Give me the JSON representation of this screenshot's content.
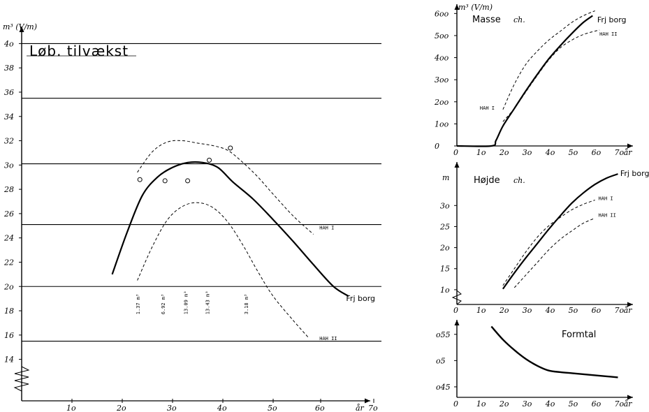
{
  "chart_data": [
    {
      "type": "line",
      "title": "Løb. tilvækst",
      "ylabel": "m³ (V/m)",
      "xlabel": "år",
      "xlim": [
        0,
        75
      ],
      "ylim": [
        13,
        41
      ],
      "xticks": [
        "1o",
        "2o",
        "3o",
        "4o",
        "5o",
        "6o",
        "7o"
      ],
      "xtick_values": [
        10,
        20,
        30,
        40,
        50,
        60,
        70
      ],
      "yticks": [
        "14",
        "16",
        "18",
        "2o",
        "22",
        "24",
        "26",
        "28",
        "3o",
        "32",
        "34",
        "36",
        "38",
        "4o"
      ],
      "ytick_values": [
        14,
        16,
        18,
        20,
        22,
        24,
        26,
        28,
        30,
        32,
        34,
        36,
        38,
        40
      ],
      "hlines": [
        15.5,
        20,
        25.1,
        30.1,
        35.5,
        40
      ],
      "series": [
        {
          "name": "Frj borg",
          "style": "solid",
          "label_at": [
            64.5,
            18.8
          ],
          "x": [
            18,
            21,
            24,
            27,
            30,
            33,
            36,
            39,
            42,
            46,
            50,
            54,
            58,
            62,
            65
          ],
          "y": [
            21,
            24.5,
            27.5,
            29,
            29.8,
            30.2,
            30.2,
            29.8,
            28.6,
            27.2,
            25.5,
            23.7,
            21.8,
            20.0,
            19.2
          ]
        },
        {
          "name": "HAH I",
          "style": "dashed",
          "label_at": [
            59.2,
            24.7
          ],
          "x": [
            23,
            26,
            29,
            32,
            35,
            38,
            41,
            44,
            47,
            50,
            54,
            58
          ],
          "y": [
            29.4,
            31.1,
            31.9,
            32,
            31.8,
            31.6,
            31.2,
            30.2,
            29,
            27.6,
            25.8,
            24.3
          ]
        },
        {
          "name": "HAH II",
          "style": "dashed",
          "label_at": [
            59.2,
            15.6
          ],
          "x": [
            23,
            26,
            29,
            32,
            35,
            38,
            41,
            44,
            47,
            50,
            54,
            57
          ],
          "y": [
            20.5,
            23.3,
            25.5,
            26.6,
            26.9,
            26.5,
            25.3,
            23.4,
            21.2,
            19.2,
            17.2,
            15.8
          ]
        }
      ],
      "points": [
        [
          23.5,
          28.8
        ],
        [
          28.5,
          28.7
        ],
        [
          33,
          28.7
        ],
        [
          37.3,
          30.4
        ],
        [
          41.5,
          31.4
        ]
      ],
      "annotations": [
        "1.37 m³",
        "6.92 m³",
        "13.09 m³",
        "13.43 m³",
        "3.18 m³"
      ],
      "annotation_x": [
        23.5,
        28.5,
        33,
        37.3,
        45
      ],
      "annotation_y": 17.7
    },
    {
      "type": "line",
      "title": "Masse",
      "title_suffix": "ch.",
      "ylabel": "m³ (V/m)",
      "xlim": [
        0,
        75
      ],
      "ylim": [
        0,
        620
      ],
      "xticks": [
        "0",
        "1o",
        "2o",
        "3o",
        "4o",
        "5o",
        "6o",
        "7o",
        "år"
      ],
      "xtick_values": [
        0,
        10,
        20,
        30,
        40,
        50,
        60,
        70,
        74
      ],
      "yticks": [
        "0",
        "1oo",
        "2oo",
        "3oo",
        "4oo",
        "5oo",
        "6oo"
      ],
      "ytick_values": [
        0,
        100,
        200,
        300,
        400,
        500,
        600
      ],
      "series": [
        {
          "name": "Frj borg",
          "style": "solid",
          "label_at": [
            61,
            560
          ],
          "x": [
            0,
            15,
            17,
            20,
            25,
            30,
            35,
            40,
            45,
            50,
            55,
            59
          ],
          "y": [
            0,
            0,
            25,
            90,
            170,
            250,
            325,
            395,
            455,
            510,
            560,
            590
          ]
        },
        {
          "name": "HAH II",
          "style": "dashed",
          "label_at": [
            62,
            500
          ],
          "x": [
            20,
            25,
            30,
            35,
            40,
            45,
            50,
            55,
            60,
            62
          ],
          "y": [
            110,
            170,
            245,
            320,
            390,
            445,
            480,
            505,
            520,
            525
          ]
        },
        {
          "name": "HAH I",
          "style": "dashed",
          "label_at": [
            10,
            165
          ],
          "x": [
            20,
            25,
            30,
            35,
            40,
            45,
            50,
            55,
            60
          ],
          "y": [
            165,
            280,
            370,
            430,
            480,
            520,
            560,
            590,
            612
          ]
        }
      ]
    },
    {
      "type": "line",
      "title": "Højde",
      "title_suffix": "ch.",
      "ylabel": "m",
      "xlim": [
        0,
        75
      ],
      "ylim": [
        6.5,
        40
      ],
      "xticks": [
        "0",
        "1o",
        "2o",
        "3o",
        "4o",
        "5o",
        "6o",
        "7o",
        "år"
      ],
      "xtick_values": [
        0,
        10,
        20,
        30,
        40,
        50,
        60,
        70,
        74
      ],
      "yticks": [
        "1o",
        "15",
        "2o",
        "25",
        "3o"
      ],
      "ytick_values": [
        10,
        15,
        20,
        25,
        30
      ],
      "series": [
        {
          "name": "Frj borg",
          "style": "solid",
          "label_at": [
            71,
            37
          ],
          "x": [
            20,
            25,
            30,
            35,
            40,
            45,
            50,
            55,
            60,
            65,
            70
          ],
          "y": [
            10.2,
            14,
            17.6,
            21,
            24.4,
            27.6,
            30.6,
            33,
            35,
            36.5,
            37.5
          ]
        },
        {
          "name": "HAH I",
          "style": "dashed",
          "label_at": [
            61.5,
            31.3
          ],
          "x": [
            20,
            25,
            30,
            35,
            40,
            45,
            50,
            55,
            60
          ],
          "y": [
            11,
            15,
            19,
            22.5,
            25.2,
            27.2,
            29,
            30.3,
            31.3
          ]
        },
        {
          "name": "HAH II",
          "style": "dashed",
          "label_at": [
            61.5,
            27.3
          ],
          "x": [
            25,
            30,
            35,
            40,
            45,
            50,
            55,
            60
          ],
          "y": [
            10.5,
            13.5,
            16.5,
            19.5,
            22,
            24,
            25.8,
            27
          ]
        }
      ]
    },
    {
      "type": "line",
      "title": "Formtal",
      "xlim": [
        0,
        75
      ],
      "ylim": [
        0.43,
        0.575
      ],
      "xticks": [
        "0",
        "1o",
        "2o",
        "3o",
        "4o",
        "5o",
        "6o",
        "7o",
        "år"
      ],
      "xtick_values": [
        0,
        10,
        20,
        30,
        40,
        50,
        60,
        70,
        74
      ],
      "yticks": [
        "o45",
        "o5",
        "o55"
      ],
      "ytick_values": [
        0.45,
        0.5,
        0.55
      ],
      "series": [
        {
          "name": "",
          "style": "solid",
          "x": [
            15,
            20,
            25,
            30,
            35,
            40,
            45,
            50,
            55,
            60,
            65,
            70
          ],
          "y": [
            0.565,
            0.54,
            0.52,
            0.503,
            0.49,
            0.481,
            0.478,
            0.476,
            0.474,
            0.472,
            0.47,
            0.468
          ]
        }
      ]
    }
  ]
}
